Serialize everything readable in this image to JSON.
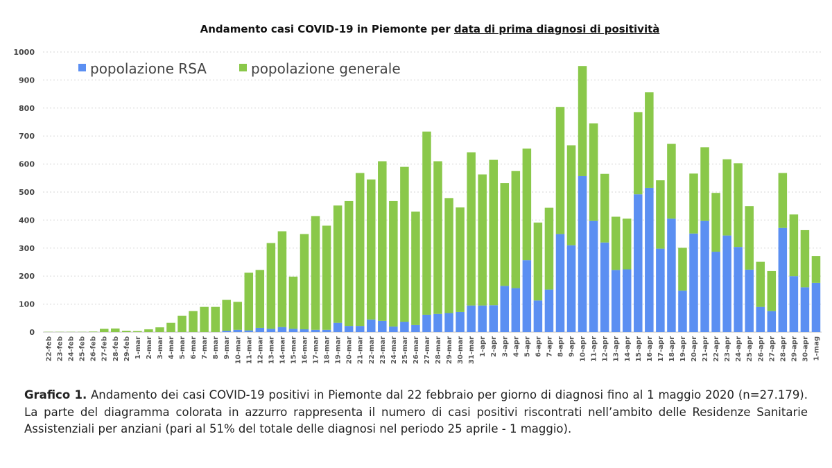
{
  "title_prefix": "Andamento casi COVID-19 in Piemonte per ",
  "title_underlined": "data di prima diagnosi di positività",
  "caption": {
    "label": "Grafico 1.",
    "text": " Andamento dei casi COVID-19 positivi in Piemonte dal 22 febbraio per giorno di diagnosi fino al 1 maggio 2020 (n=27.179). La parte del diagramma colorata in azzurro rappresenta il numero di casi positivi riscontrati nell’ambito delle Residenze Sanitarie Assistenziali per anziani (pari al 51% del totale delle diagnosi nel periodo 25 aprile - 1 maggio)."
  },
  "chart_data": {
    "type": "bar",
    "stacked": true,
    "title": "Andamento casi COVID-19 in Piemonte per data di prima diagnosi di positività",
    "xlabel": "",
    "ylabel": "",
    "ylim": [
      0,
      1000
    ],
    "yticks": [
      0,
      100,
      200,
      300,
      400,
      500,
      600,
      700,
      800,
      900,
      1000
    ],
    "grid": true,
    "legend_position": "top-left",
    "categories": [
      "22-feb",
      "23-feb",
      "24-feb",
      "25-feb",
      "26-feb",
      "27-feb",
      "28-feb",
      "29-feb",
      "1-mar",
      "2-mar",
      "3-mar",
      "4-mar",
      "5-mar",
      "6-mar",
      "7-mar",
      "8-mar",
      "9-mar",
      "10-mar",
      "11-mar",
      "12-mar",
      "13-mar",
      "14-mar",
      "15-mar",
      "16-mar",
      "17-mar",
      "18-mar",
      "19-mar",
      "20-mar",
      "21-mar",
      "22-mar",
      "23-mar",
      "24-mar",
      "25-mar",
      "26-mar",
      "27-mar",
      "28-mar",
      "29-mar",
      "30-mar",
      "31-mar",
      "1-apr",
      "2-apr",
      "3-apr",
      "4-apr",
      "5-apr",
      "6-apr",
      "7-apr",
      "8-apr",
      "9-apr",
      "10-apr",
      "11-apr",
      "12-apr",
      "13-apr",
      "14-apr",
      "15-apr",
      "16-apr",
      "17-apr",
      "18-apr",
      "19-apr",
      "20-apr",
      "21-apr",
      "22-apr",
      "23-apr",
      "24-apr",
      "25-apr",
      "26-apr",
      "27-apr",
      "28-apr",
      "29-apr",
      "30-apr",
      "1-mag"
    ],
    "series": [
      {
        "name": "popolazione RSA",
        "color": "#5b8ff2",
        "values": [
          0,
          0,
          0,
          0,
          0,
          0,
          0,
          0,
          0,
          0,
          0,
          0,
          0,
          0,
          0,
          0,
          5,
          8,
          6,
          15,
          12,
          18,
          12,
          10,
          8,
          8,
          33,
          22,
          22,
          45,
          40,
          20,
          37,
          25,
          62,
          65,
          68,
          72,
          95,
          95,
          96,
          165,
          157,
          257,
          113,
          152,
          350,
          310,
          557,
          397,
          320,
          222,
          224,
          492,
          515,
          298,
          405,
          148,
          352,
          397,
          287,
          345,
          304,
          223,
          90,
          75,
          372,
          200,
          160,
          176
        ]
      },
      {
        "name": "popolazione generale",
        "color": "#8ac84a",
        "values": [
          1,
          1,
          1,
          1,
          2,
          12,
          13,
          5,
          4,
          10,
          17,
          33,
          58,
          75,
          90,
          90,
          110,
          100,
          206,
          207,
          306,
          342,
          186,
          340,
          406,
          372,
          419,
          446,
          546,
          500,
          570,
          448,
          553,
          405,
          654,
          545,
          410,
          373,
          547,
          468,
          519,
          367,
          418,
          398,
          278,
          292,
          454,
          357,
          393,
          348,
          245,
          190,
          181,
          293,
          341,
          244,
          267,
          153,
          214,
          263,
          210,
          272,
          299,
          227,
          161,
          143,
          196,
          220,
          204,
          96
        ]
      }
    ]
  }
}
